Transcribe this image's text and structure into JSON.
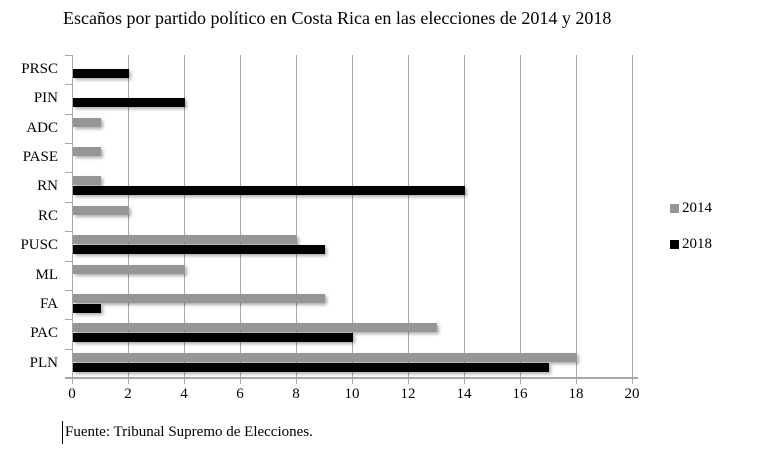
{
  "title": "Escaños por partido político en Costa Rica en las elecciones de 2014 y 2018",
  "source_note": "Fuente: Tribunal Supremo de Elecciones.",
  "chart_data": {
    "type": "bar",
    "orientation": "horizontal",
    "title": "Escaños por partido político en Costa Rica en las elecciones de 2014 y 2018",
    "xlabel": "",
    "ylabel": "",
    "categories_top_to_bottom": [
      "PRSC",
      "PIN",
      "ADC",
      "PASE",
      "RN",
      "RC",
      "PUSC",
      "ML",
      "FA",
      "PAC",
      "PLN"
    ],
    "series": [
      {
        "name": "2014",
        "color": "#969696",
        "values": [
          0,
          0,
          1,
          1,
          1,
          2,
          8,
          4,
          9,
          13,
          18
        ]
      },
      {
        "name": "2018",
        "color": "#000000",
        "values": [
          2,
          4,
          0,
          0,
          14,
          0,
          9,
          0,
          1,
          10,
          17
        ]
      }
    ],
    "xlim": [
      0,
      20
    ],
    "x_ticks": [
      0,
      2,
      4,
      6,
      8,
      10,
      12,
      14,
      16,
      18,
      20
    ],
    "grid": "vertical-only",
    "legend_position": "right-middle"
  },
  "colors": {
    "background": "#ffffff",
    "gridline": "#a8a8a8",
    "axis": "#a8a8a8",
    "text": "#000000",
    "series_2014": "#969696",
    "series_2018": "#000000"
  }
}
